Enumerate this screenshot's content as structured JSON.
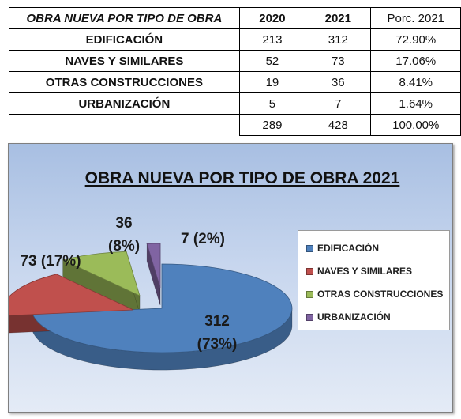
{
  "table": {
    "header": {
      "label": "OBRA NUEVA POR TIPO DE OBRA",
      "col_2020": "2020",
      "col_2021": "2021",
      "col_pct": "Porc. 2021"
    },
    "rows": [
      {
        "label": "EDIFICACIÓN",
        "y2020": "213",
        "y2021": "312",
        "pct": "72.90%"
      },
      {
        "label": "NAVES Y SIMILARES",
        "y2020": "52",
        "y2021": "73",
        "pct": "17.06%"
      },
      {
        "label": "OTRAS CONSTRUCCIONES",
        "y2020": "19",
        "y2021": "36",
        "pct": "8.41%"
      },
      {
        "label": "URBANIZACIÓN",
        "y2020": "5",
        "y2021": "7",
        "pct": "1.64%"
      }
    ],
    "totals": {
      "y2020": "289",
      "y2021": "428",
      "pct": "100.00%"
    }
  },
  "chart_data": {
    "type": "pie",
    "title": "OBRA NUEVA POR TIPO DE OBRA 2021",
    "categories": [
      "EDIFICACIÓN",
      "NAVES Y SIMILARES",
      "OTRAS CONSTRUCCIONES",
      "URBANIZACIÓN"
    ],
    "values": [
      312,
      73,
      36,
      7
    ],
    "percent_labels": [
      "73%",
      "17%",
      "8%",
      "2%"
    ],
    "colors": [
      "#4f81bd",
      "#c0504d",
      "#9bbb59",
      "#8064a2"
    ],
    "exploded": true,
    "three_d": true,
    "legend_position": "right"
  }
}
